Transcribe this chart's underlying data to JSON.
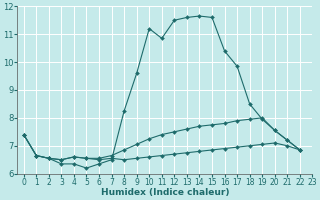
{
  "xlabel": "Humidex (Indice chaleur)",
  "bg_color": "#c5eaea",
  "grid_color": "#ffffff",
  "line_color": "#1e6b6b",
  "xlim": [
    -0.5,
    23
  ],
  "ylim": [
    6.0,
    12.0
  ],
  "yticks": [
    6,
    7,
    8,
    9,
    10,
    11,
    12
  ],
  "xtick_labels": [
    "0",
    "1",
    "2",
    "3",
    "4",
    "5",
    "6",
    "7",
    "8",
    "9",
    "10",
    "11",
    "12",
    "13",
    "14",
    "15",
    "16",
    "17",
    "18",
    "19",
    "20",
    "21",
    "22",
    "23"
  ],
  "series1_x": [
    0,
    1,
    2,
    3,
    4,
    5,
    6,
    7,
    8,
    9,
    10,
    11,
    12,
    13,
    14,
    15,
    16,
    17,
    18,
    19,
    20,
    21,
    22
  ],
  "series1_y": [
    7.4,
    6.65,
    6.55,
    6.35,
    6.35,
    6.2,
    6.35,
    6.5,
    8.25,
    9.6,
    11.2,
    10.85,
    11.5,
    11.6,
    11.65,
    11.6,
    10.4,
    9.85,
    8.5,
    7.95,
    7.55,
    7.2,
    6.85
  ],
  "series2_x": [
    0,
    1,
    2,
    3,
    4,
    5,
    6,
    7,
    8,
    9,
    10,
    11,
    12,
    13,
    14,
    15,
    16,
    17,
    18,
    19,
    20,
    21,
    22
  ],
  "series2_y": [
    7.4,
    6.65,
    6.55,
    6.5,
    6.6,
    6.55,
    6.55,
    6.65,
    6.85,
    7.05,
    7.25,
    7.4,
    7.5,
    7.6,
    7.7,
    7.75,
    7.8,
    7.9,
    7.95,
    8.0,
    7.55,
    7.2,
    6.85
  ],
  "series3_x": [
    0,
    1,
    2,
    3,
    4,
    5,
    6,
    7,
    8,
    9,
    10,
    11,
    12,
    13,
    14,
    15,
    16,
    17,
    18,
    19,
    20,
    21,
    22
  ],
  "series3_y": [
    7.4,
    6.65,
    6.55,
    6.5,
    6.6,
    6.55,
    6.5,
    6.55,
    6.5,
    6.55,
    6.6,
    6.65,
    6.7,
    6.75,
    6.8,
    6.85,
    6.9,
    6.95,
    7.0,
    7.05,
    7.1,
    7.0,
    6.85
  ]
}
